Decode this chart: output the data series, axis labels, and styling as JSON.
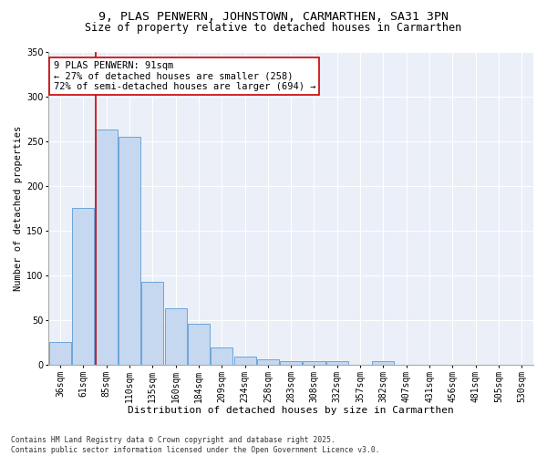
{
  "title1": "9, PLAS PENWERN, JOHNSTOWN, CARMARTHEN, SA31 3PN",
  "title2": "Size of property relative to detached houses in Carmarthen",
  "xlabel": "Distribution of detached houses by size in Carmarthen",
  "ylabel": "Number of detached properties",
  "annotation_title": "9 PLAS PENWERN: 91sqm",
  "annotation_line1": "← 27% of detached houses are smaller (258)",
  "annotation_line2": "72% of semi-detached houses are larger (694) →",
  "footer1": "Contains HM Land Registry data © Crown copyright and database right 2025.",
  "footer2": "Contains public sector information licensed under the Open Government Licence v3.0.",
  "bar_categories": [
    "36sqm",
    "61sqm",
    "85sqm",
    "110sqm",
    "135sqm",
    "160sqm",
    "184sqm",
    "209sqm",
    "234sqm",
    "258sqm",
    "283sqm",
    "308sqm",
    "332sqm",
    "357sqm",
    "382sqm",
    "407sqm",
    "431sqm",
    "456sqm",
    "481sqm",
    "505sqm",
    "530sqm"
  ],
  "bar_values": [
    26,
    175,
    263,
    255,
    93,
    63,
    46,
    19,
    9,
    6,
    4,
    4,
    4,
    0,
    4,
    0,
    0,
    0,
    0,
    0,
    0
  ],
  "bar_color": "#c5d8f0",
  "bar_edge_color": "#5b9bd5",
  "vline_color": "#cc0000",
  "vline_bar_index": 2,
  "background_color": "#eaeff8",
  "grid_color": "#ffffff",
  "ylim": [
    0,
    350
  ],
  "yticks": [
    0,
    50,
    100,
    150,
    200,
    250,
    300,
    350
  ],
  "annotation_box_facecolor": "#ffffff",
  "annotation_box_edgecolor": "#cc0000",
  "title1_fontsize": 9.5,
  "title2_fontsize": 8.5,
  "xlabel_fontsize": 8,
  "ylabel_fontsize": 7.5,
  "tick_fontsize": 7,
  "annotation_fontsize": 7.5,
  "footer_fontsize": 5.8
}
